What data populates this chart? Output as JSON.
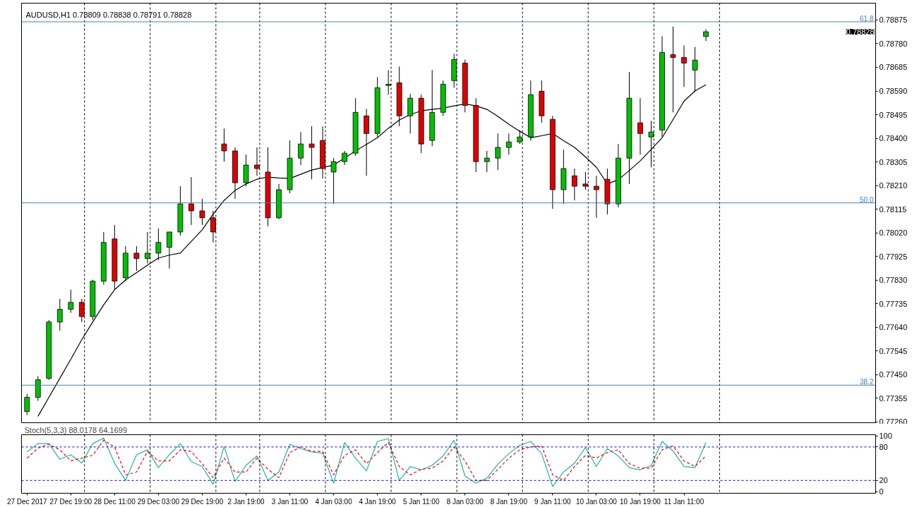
{
  "chart_data": [
    {
      "type": "candlestick",
      "title": "AUDUSD,H1  0.78809 0.78838 0.78791 0.78828",
      "categories": [
        null,
        null,
        null,
        null,
        null,
        null,
        null,
        null,
        null,
        null,
        null,
        null,
        null,
        null,
        null,
        null,
        null,
        null,
        null,
        null,
        null,
        null,
        null,
        null,
        null,
        null,
        null,
        null,
        null,
        null,
        null,
        null,
        null,
        null,
        null,
        null,
        null,
        null,
        null,
        null,
        null,
        null,
        null,
        null,
        null,
        null,
        null,
        null,
        null,
        null,
        null,
        null,
        null,
        null,
        null,
        null,
        null,
        null,
        null,
        null,
        null,
        null,
        null,
        null,
        null,
        null,
        null,
        null,
        null,
        null,
        null,
        null,
        null,
        null,
        null,
        null,
        null,
        null
      ],
      "ohlc": [
        [
          0.77301,
          0.77372,
          0.77287,
          0.77358
        ],
        [
          0.77358,
          0.77443,
          0.77344,
          0.77429
        ],
        [
          0.77434,
          0.77669,
          0.77429,
          0.77661
        ],
        [
          0.77661,
          0.77754,
          0.77627,
          0.77712
        ],
        [
          0.77712,
          0.77791,
          0.77698,
          0.7774
        ],
        [
          0.7774,
          0.77754,
          0.77661,
          0.77683
        ],
        [
          0.77683,
          0.77831,
          0.77669,
          0.77825
        ],
        [
          0.77825,
          0.78023,
          0.77811,
          0.77981
        ],
        [
          0.77995,
          0.78051,
          0.77791,
          0.77825
        ],
        [
          0.77839,
          0.77966,
          0.77825,
          0.77938
        ],
        [
          0.77938,
          0.77966,
          0.77867,
          0.77916
        ],
        [
          0.77916,
          0.78023,
          0.77896,
          0.77938
        ],
        [
          0.77938,
          0.78037,
          0.7791,
          0.77981
        ],
        [
          0.77961,
          0.78023,
          0.77876,
          0.78023
        ],
        [
          0.78023,
          0.78207,
          0.78009,
          0.78136
        ],
        [
          0.78136,
          0.78244,
          0.78051,
          0.78108
        ],
        [
          0.78108,
          0.78156,
          0.78051,
          0.7808
        ],
        [
          0.7808,
          0.78108,
          0.77981,
          0.78023
        ],
        [
          0.78377,
          0.78439,
          0.78306,
          0.78349
        ],
        [
          0.78349,
          0.78363,
          0.78156,
          0.78221
        ],
        [
          0.78221,
          0.78334,
          0.78207,
          0.78292
        ],
        [
          0.78292,
          0.78363,
          0.78249,
          0.78278
        ],
        [
          0.78264,
          0.78363,
          0.78046,
          0.7808
        ],
        [
          0.7808,
          0.78216,
          0.78074,
          0.78193
        ],
        [
          0.78193,
          0.78391,
          0.78179,
          0.7832
        ],
        [
          0.7832,
          0.78425,
          0.78292,
          0.78377
        ],
        [
          0.78377,
          0.78448,
          0.78235,
          0.78363
        ],
        [
          0.78391,
          0.78448,
          0.78238,
          0.78278
        ],
        [
          0.78264,
          0.7832,
          0.78136,
          0.78306
        ],
        [
          0.78306,
          0.78349,
          0.78292,
          0.7834
        ],
        [
          0.7834,
          0.78561,
          0.78329,
          0.78504
        ],
        [
          0.7849,
          0.78518,
          0.78249,
          0.78419
        ],
        [
          0.78419,
          0.78646,
          0.78405,
          0.78603
        ],
        [
          0.78612,
          0.78674,
          0.78575,
          0.78617
        ],
        [
          0.78623,
          0.78688,
          0.78448,
          0.7849
        ],
        [
          0.7849,
          0.78578,
          0.78419,
          0.78561
        ],
        [
          0.78561,
          0.78575,
          0.7834,
          0.78377
        ],
        [
          0.78391,
          0.78674,
          0.78368,
          0.78504
        ],
        [
          0.78504,
          0.78632,
          0.7849,
          0.78617
        ],
        [
          0.78632,
          0.78739,
          0.78603,
          0.78716
        ],
        [
          0.78702,
          0.78716,
          0.78504,
          0.78532
        ],
        [
          0.78532,
          0.78561,
          0.78264,
          0.78306
        ],
        [
          0.78306,
          0.78349,
          0.78264,
          0.7832
        ],
        [
          0.7832,
          0.78419,
          0.78272,
          0.78363
        ],
        [
          0.78363,
          0.78419,
          0.78334,
          0.78385
        ],
        [
          0.78385,
          0.78433,
          0.78377,
          0.78405
        ],
        [
          0.78405,
          0.78632,
          0.78391,
          0.78575
        ],
        [
          0.78589,
          0.78632,
          0.78462,
          0.7849
        ],
        [
          0.78476,
          0.7849,
          0.78116,
          0.78193
        ],
        [
          0.78193,
          0.78354,
          0.78136,
          0.78278
        ],
        [
          0.78249,
          0.78278,
          0.7815,
          0.78207
        ],
        [
          0.78216,
          0.78264,
          0.78193,
          0.78207
        ],
        [
          0.78207,
          0.78249,
          0.7808,
          0.78193
        ],
        [
          0.78235,
          0.78278,
          0.78094,
          0.78136
        ],
        [
          0.78136,
          0.78377,
          0.78122,
          0.7832
        ],
        [
          0.7832,
          0.78666,
          0.78216,
          0.78561
        ],
        [
          0.78462,
          0.78561,
          0.78334,
          0.78419
        ],
        [
          0.78405,
          0.7847,
          0.78283,
          0.78425
        ],
        [
          0.78433,
          0.7881,
          0.78405,
          0.78745
        ],
        [
          0.78736,
          0.78849,
          0.78504,
          0.78725
        ],
        [
          0.78725,
          0.78773,
          0.78606,
          0.78702
        ],
        [
          0.78674,
          0.78767,
          0.78586,
          0.78714
        ],
        [
          0.78809,
          0.78838,
          0.78791,
          0.78828
        ],
        null,
        null,
        null,
        null,
        null,
        null,
        null,
        null,
        null,
        null,
        null,
        null,
        null,
        null,
        null
      ],
      "series": [
        {
          "type": "line",
          "color": "#000000",
          "values": [
            null,
            0.77282,
            0.77358,
            0.77435,
            0.77511,
            0.7759,
            0.77661,
            0.7773,
            0.77791,
            0.7783,
            0.77859,
            0.7789,
            0.77918,
            0.7793,
            0.77938,
            0.77985,
            0.78032,
            0.78095,
            0.7815,
            0.7819,
            0.78216,
            0.78235,
            0.78244,
            0.7824,
            0.78238,
            0.78255,
            0.78272,
            0.78282,
            0.78292,
            0.7832,
            0.78349,
            0.78375,
            0.78402,
            0.7844,
            0.78473,
            0.78495,
            0.7851,
            0.78516,
            0.78521,
            0.7853,
            0.78538,
            0.7853,
            0.78516,
            0.78488,
            0.78456,
            0.78428,
            0.78402,
            0.7841,
            0.78419,
            0.7839,
            0.78363,
            0.78325,
            0.78283,
            0.78216,
            0.78233,
            0.7827,
            0.78309,
            0.78355,
            0.78402,
            0.78475,
            0.78549,
            0.7859,
            0.78615,
            null,
            null,
            null,
            null,
            null,
            null,
            null,
            null,
            null,
            null,
            null,
            null,
            null,
            null,
            null
          ]
        }
      ],
      "ylim": [
        0.77256,
        0.78943
      ],
      "yticks": [
        0.78875,
        {
          "value": 0.7878,
          "label": "0.78780"
        },
        0.78685,
        {
          "value": 0.7859,
          "label": "0.78590"
        },
        0.78495,
        {
          "value": 0.784,
          "label": "0.78400"
        },
        0.78305,
        {
          "value": 0.7821,
          "label": "0.78210"
        },
        0.78115,
        {
          "value": 0.7802,
          "label": "0.78020"
        },
        0.77925,
        {
          "value": 0.7783,
          "label": "0.77830"
        },
        0.77735,
        {
          "value": 0.7764,
          "label": "0.77640"
        },
        0.77545,
        {
          "value": 0.7745,
          "label": "0.77450"
        },
        0.77355,
        {
          "value": 0.7726,
          "label": "0.77260"
        }
      ],
      "tick_labels": "y",
      "ref_lines": [
        {
          "axis": "y",
          "value": 0.78868,
          "color": "#4682b4",
          "line_style": "solid"
        },
        {
          "axis": "y",
          "value": 0.7814,
          "color": "#4682b4",
          "line_style": "solid"
        },
        {
          "axis": "y",
          "value": 0.77407,
          "color": "#4682b4",
          "line_style": "solid"
        }
      ],
      "annotations": [
        {
          "text": "61.8",
          "y": 0.78868
        },
        {
          "text": "50.0",
          "y": 0.7814
        },
        {
          "text": "38.2",
          "y": 0.77407
        },
        "0.78828"
      ]
    },
    {
      "type": "line",
      "title": "Stoch(5,3,3) 88.0178 64.1699",
      "categories": [
        "27 Dec 2017",
        null,
        null,
        null,
        "27 Dec 19:00",
        null,
        null,
        null,
        "28 Dec 11:00",
        null,
        null,
        null,
        "29 Dec 03:00",
        null,
        null,
        null,
        "29 Dec 19:00",
        null,
        null,
        null,
        "2 Jan 19:00",
        null,
        null,
        null,
        "3 Jan 11:00",
        null,
        null,
        null,
        "4 Jan 03:00",
        null,
        null,
        null,
        "4 Jan 19:00",
        null,
        null,
        null,
        "5 Jan 11:00",
        null,
        null,
        null,
        "8 Jan 03:00",
        null,
        null,
        null,
        "8 Jan 19:00",
        null,
        null,
        null,
        "9 Jan 11:00",
        null,
        null,
        null,
        "10 Jan 03:00",
        null,
        null,
        null,
        "10 Jan 19:00",
        null,
        null,
        null,
        "11 Jan 11:00",
        null,
        null,
        null,
        null,
        null,
        null,
        null,
        null,
        null,
        null,
        null,
        null,
        null,
        null,
        null,
        null,
        null
      ],
      "series": [
        {
          "color": "#20b2aa",
          "line_style": "solid",
          "values": [
            71,
            86,
            86,
            58,
            66,
            51,
            86,
            96,
            51,
            20,
            66,
            75,
            43,
            66,
            86,
            54,
            45,
            13,
            81,
            18,
            47,
            64,
            20,
            35,
            85,
            77,
            71,
            69,
            15,
            88,
            60,
            37,
            90,
            95,
            20,
            45,
            39,
            47,
            64,
            92,
            28,
            15,
            24,
            49,
            68,
            83,
            90,
            68,
            9,
            35,
            51,
            79,
            45,
            77,
            64,
            43,
            39,
            47,
            90,
            73,
            45,
            43,
            88,
            null,
            null,
            null,
            null,
            null,
            null,
            null,
            null,
            null,
            null,
            null,
            null,
            null,
            null,
            null
          ]
        },
        {
          "color": "#ff0000",
          "line_style": "dashed",
          "values": [
            60,
            78,
            85,
            75,
            55,
            60,
            65,
            92,
            80,
            30,
            35,
            72,
            55,
            55,
            75,
            72,
            50,
            25,
            60,
            35,
            35,
            60,
            40,
            25,
            70,
            80,
            72,
            72,
            30,
            65,
            75,
            50,
            70,
            88,
            45,
            30,
            40,
            42,
            55,
            80,
            55,
            20,
            20,
            40,
            60,
            75,
            80,
            82,
            30,
            20,
            45,
            65,
            60,
            70,
            75,
            50,
            42,
            42,
            75,
            82,
            55,
            45,
            64,
            null,
            null,
            null,
            null,
            null,
            null,
            null,
            null,
            null,
            null,
            null,
            null,
            null,
            null,
            null
          ]
        }
      ],
      "ylim": [
        -3,
        102
      ],
      "yticks": [
        0,
        20,
        80,
        100
      ],
      "ref_lines": [
        {
          "axis": "y",
          "value": 80,
          "color": "#0000ff",
          "line_style": "dashed"
        },
        {
          "axis": "y",
          "value": 20,
          "color": "#0000ff",
          "line_style": "dashed"
        }
      ]
    }
  ]
}
